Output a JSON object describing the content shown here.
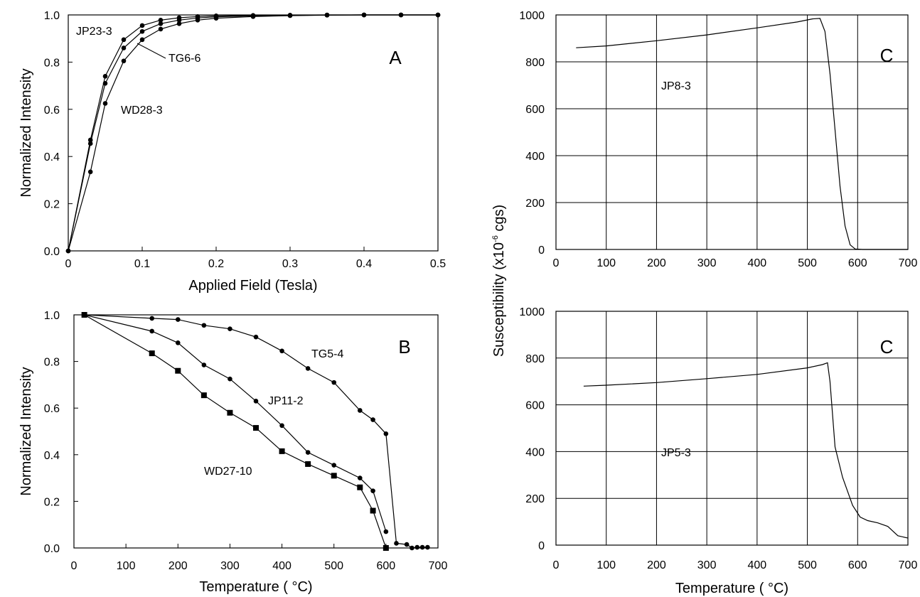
{
  "chart_data": [
    {
      "panel_label": "A",
      "type": "line",
      "xlabel": "Applied Field (Tesla)",
      "ylabel": "Normalized Intensity",
      "xlim": [
        0,
        0.5
      ],
      "ylim": [
        0,
        1.0
      ],
      "xticks": [
        "0",
        "0.1",
        "0.2",
        "0.3",
        "0.4",
        "0.5"
      ],
      "yticks": [
        "0.0",
        "0.2",
        "0.4",
        "0.6",
        "0.8",
        "1.0"
      ],
      "grid": false,
      "series": [
        {
          "name": "JP23-3",
          "marker": "circle",
          "x": [
            0,
            0.03,
            0.05,
            0.075,
            0.1,
            0.125,
            0.15,
            0.175,
            0.2,
            0.25,
            0.3,
            0.35,
            0.4,
            0.45,
            0.5
          ],
          "y": [
            0,
            0.47,
            0.74,
            0.895,
            0.955,
            0.978,
            0.988,
            0.993,
            0.996,
            0.998,
            0.999,
            1.0,
            1.0,
            1.0,
            1.0
          ]
        },
        {
          "name": "TG6-6",
          "marker": "circle",
          "x": [
            0,
            0.03,
            0.05,
            0.075,
            0.1,
            0.125,
            0.15,
            0.175,
            0.2,
            0.25,
            0.3,
            0.35,
            0.4,
            0.45,
            0.5
          ],
          "y": [
            0,
            0.455,
            0.71,
            0.86,
            0.93,
            0.963,
            0.978,
            0.987,
            0.992,
            0.996,
            0.998,
            0.999,
            1.0,
            1.0,
            1.0
          ]
        },
        {
          "name": "WD28-3",
          "marker": "circle",
          "x": [
            0,
            0.03,
            0.05,
            0.075,
            0.1,
            0.125,
            0.15,
            0.175,
            0.2,
            0.25,
            0.3,
            0.35,
            0.4,
            0.45,
            0.5
          ],
          "y": [
            0,
            0.335,
            0.625,
            0.805,
            0.895,
            0.94,
            0.963,
            0.978,
            0.986,
            0.993,
            0.997,
            0.999,
            1.0,
            1.0,
            1.0
          ]
        }
      ]
    },
    {
      "panel_label": "B",
      "type": "line",
      "xlabel": "Temperature ( °C)",
      "ylabel": "Normalized Intensity",
      "xlim": [
        0,
        700
      ],
      "ylim": [
        0,
        1.0
      ],
      "xticks": [
        "0",
        "100",
        "200",
        "300",
        "400",
        "500",
        "600",
        "700"
      ],
      "yticks": [
        "0.0",
        "0.2",
        "0.4",
        "0.6",
        "0.8",
        "1.0"
      ],
      "grid": false,
      "series": [
        {
          "name": "TG5-4",
          "marker": "circle",
          "x": [
            20,
            150,
            200,
            250,
            300,
            350,
            400,
            450,
            500,
            550,
            575,
            600,
            620,
            640,
            650,
            660,
            670,
            680
          ],
          "y": [
            1.0,
            0.985,
            0.98,
            0.955,
            0.94,
            0.905,
            0.845,
            0.77,
            0.71,
            0.59,
            0.55,
            0.49,
            0.02,
            0.015,
            0.0,
            0.003,
            0.003,
            0.003
          ]
        },
        {
          "name": "JP11-2",
          "marker": "circle",
          "x": [
            20,
            150,
            200,
            250,
            300,
            350,
            400,
            450,
            500,
            550,
            575,
            600
          ],
          "y": [
            1.0,
            0.93,
            0.88,
            0.785,
            0.725,
            0.63,
            0.525,
            0.41,
            0.355,
            0.3,
            0.245,
            0.07
          ]
        },
        {
          "name": "WD27-10",
          "marker": "square",
          "x": [
            20,
            150,
            200,
            250,
            300,
            350,
            400,
            450,
            500,
            550,
            575,
            600
          ],
          "y": [
            1.0,
            0.835,
            0.76,
            0.655,
            0.58,
            0.515,
            0.415,
            0.36,
            0.31,
            0.26,
            0.16,
            0.0
          ]
        }
      ]
    },
    {
      "panel_label": "C",
      "type": "line",
      "xlabel": "",
      "ylabel": "",
      "xlim": [
        0,
        700
      ],
      "ylim": [
        0,
        1000
      ],
      "xticks": [
        "0",
        "100",
        "200",
        "300",
        "400",
        "500",
        "600",
        "700"
      ],
      "yticks": [
        "0",
        "200",
        "400",
        "600",
        "800",
        "1000"
      ],
      "grid": true,
      "series": [
        {
          "name": "JP8-3",
          "marker": "none",
          "x": [
            40,
            100,
            200,
            300,
            400,
            480,
            510,
            525,
            535,
            545,
            555,
            565,
            575,
            585,
            595,
            610,
            700
          ],
          "y": [
            860,
            868,
            890,
            915,
            945,
            970,
            983,
            985,
            930,
            750,
            510,
            270,
            100,
            20,
            2,
            0,
            0
          ]
        }
      ]
    },
    {
      "panel_label": "C",
      "type": "line",
      "xlabel": "Temperature ( °C)",
      "ylabel": "",
      "xlim": [
        0,
        700
      ],
      "ylim": [
        0,
        1000
      ],
      "xticks": [
        "0",
        "100",
        "200",
        "300",
        "400",
        "500",
        "600",
        "700"
      ],
      "yticks": [
        "0",
        "200",
        "400",
        "600",
        "800",
        "1000"
      ],
      "grid": true,
      "series": [
        {
          "name": "JP5-3",
          "marker": "none",
          "x": [
            55,
            100,
            200,
            300,
            400,
            500,
            530,
            540,
            545,
            555,
            570,
            590,
            605,
            620,
            640,
            660,
            680,
            700
          ],
          "y": [
            680,
            684,
            695,
            712,
            730,
            758,
            772,
            780,
            700,
            420,
            290,
            170,
            120,
            105,
            95,
            80,
            40,
            30
          ]
        }
      ]
    }
  ],
  "shared_ylabel": "Susceptibility (x10",
  "shared_ylabel_sup": "-6",
  "shared_ylabel_tail": " cgs)"
}
